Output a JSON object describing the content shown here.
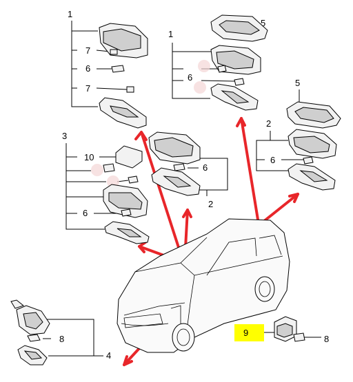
{
  "diagram": {
    "callouts": {
      "group_a": "1",
      "group_a_clip_top": "7",
      "group_a_bulb": "6",
      "group_a_clip_bottom": "7",
      "group_b": "1",
      "group_b_frame": "5",
      "group_b_bulb": "6",
      "group_c": "3",
      "group_c_module": "10",
      "group_c_bulb": "6",
      "group_d_bulb": "6",
      "group_d": "2",
      "group_e_frame": "5",
      "group_e": "2",
      "group_e_bulb": "6",
      "group_f_bulb": "8",
      "group_f": "4",
      "group_g_lamp": "9",
      "group_g_bulb": "8"
    },
    "colors": {
      "arrow": "#e8262a",
      "highlight": "#ffff00",
      "line": "#000000"
    }
  }
}
